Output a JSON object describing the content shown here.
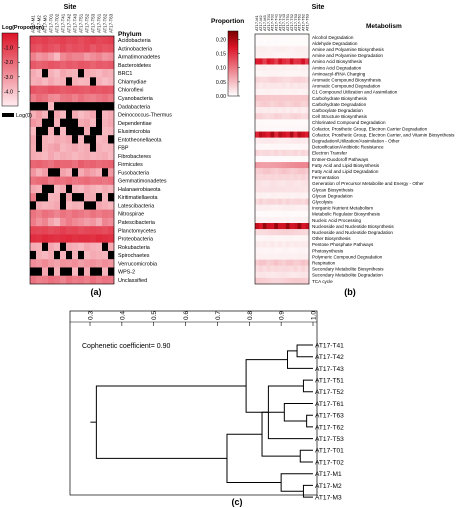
{
  "panel_a": {
    "label": "(a)",
    "site_title": "Site",
    "row_title": "Phylum",
    "legend_title": "Log(Proportion)",
    "legend_ticks": [
      "-1.0",
      "-2.0",
      "-3.0",
      "-4.0"
    ],
    "zero_label": "Log(0)",
    "sites": [
      "AT17-M1",
      "AT17-M2",
      "AT17-M3",
      "AT17-T01",
      "AT17-T02",
      "AT17-T41",
      "AT17-T42",
      "AT17-T43",
      "AT17-T51",
      "AT17-T52",
      "AT17-T53",
      "AT17-T61",
      "AT17-T62",
      "AT17-T63"
    ]
  },
  "panel_b": {
    "label": "(b)",
    "site_title": "Site",
    "row_title": "Metabolism",
    "legend_title": "Proportion",
    "legend_ticks": [
      "0.20",
      "0.15",
      "0.10",
      "0.05",
      "0.00"
    ],
    "sites": [
      "AT17-M1",
      "AT17-M2",
      "AT17-M3",
      "AT17-T01",
      "AT17-T02",
      "AT17-T41",
      "AT17-T42",
      "AT17-T43",
      "AT17-T51",
      "AT17-T52",
      "AT17-T53",
      "AT17-T61",
      "AT17-T62",
      "AT17-T63"
    ]
  },
  "panel_c": {
    "label": "(c)",
    "annotation": "Cophenetic coefficient= 0.90",
    "axis_ticks": [
      "0.3",
      "0.4",
      "0.5",
      "0.6",
      "0.7",
      "0.8",
      "0.9",
      "1.0"
    ],
    "leaves": [
      "AT17-T41",
      "AT17-T42",
      "AT17-T43",
      "AT17-T51",
      "AT17-T52",
      "AT17-T61",
      "AT17-T63",
      "AT17-T62",
      "AT17-T53",
      "AT17-T01",
      "AT17-T02",
      "AT17-M1",
      "AT17-M2",
      "AT17-M3"
    ]
  },
  "chart_data": [
    {
      "type": "heatmap",
      "panel": "a",
      "x": [
        "AT17-M1",
        "AT17-M2",
        "AT17-M3",
        "AT17-T01",
        "AT17-T02",
        "AT17-T41",
        "AT17-T42",
        "AT17-T43",
        "AT17-T51",
        "AT17-T52",
        "AT17-T53",
        "AT17-T61",
        "AT17-T62",
        "AT17-T63"
      ],
      "y": [
        "Acidobacteria",
        "Actinobacteria",
        "Armatimonadetes",
        "Bacteroidetes",
        "BRC1",
        "Chlamydiae",
        "Chloroflexi",
        "Cyanobacteria",
        "Dadabacteria",
        "Deinococcus-Thermus",
        "Dependentiae",
        "Elusimicrobia",
        "Entotheonellaeota",
        "FBP",
        "Fibrobacteres",
        "Firmicutes",
        "Fusobacteria",
        "Gemmatimonadetes",
        "Halanaerobiaeota",
        "Kiritimatiellaeota",
        "Latescibacteria",
        "Nitrospirae",
        "Patescibacteria",
        "Planctomycetes",
        "Proteobacteria",
        "Rokubacteria",
        "Spirochaetes",
        "Verrucomicrobia",
        "WPS-2",
        "Unclassified"
      ],
      "colorbar": {
        "label": "Log(Proportion)",
        "range": [
          -5,
          0
        ],
        "ticks": [
          -1.0,
          -2.0,
          -3.0,
          -4.0
        ],
        "zero_color": "#000000"
      },
      "values": [
        [
          -1.0,
          -1.1,
          -1.0,
          -1.2,
          -1.1,
          -1.0,
          -1.2,
          -1.1,
          -1.3,
          -1.1,
          -1.0,
          -1.2,
          -1.1,
          -1.0
        ],
        [
          -1.3,
          -1.5,
          -1.2,
          -1.4,
          -1.6,
          -1.2,
          -1.5,
          -1.3,
          -1.4,
          -1.2,
          -1.6,
          -1.3,
          -1.5,
          -1.4
        ],
        [
          -2.5,
          -3.0,
          -2.8,
          -3.2,
          -3.8,
          -2.7,
          -2.4,
          -2.6,
          -2.6,
          -3.1,
          -2.8,
          -2.6,
          -3.0,
          -2.8
        ],
        [
          -1.6,
          -1.8,
          -1.7,
          -1.5,
          -1.6,
          -1.8,
          -1.6,
          -1.7,
          -1.5,
          -1.6,
          -1.8,
          -1.6,
          -1.7,
          -1.6
        ],
        [
          -3.5,
          -3.8,
          null,
          -3.6,
          -3.9,
          -3.4,
          -3.6,
          -3.7,
          null,
          -3.5,
          -3.6,
          -3.8,
          -3.5,
          -3.6
        ],
        [
          -3.6,
          -3.5,
          -3.8,
          -3.4,
          -3.7,
          -3.6,
          null,
          -3.6,
          -3.8,
          -3.7,
          null,
          -3.6,
          -3.9,
          -3.7
        ],
        [
          -1.5,
          -1.7,
          -1.6,
          -1.4,
          -1.5,
          -1.7,
          -1.6,
          -1.5,
          -1.6,
          -1.7,
          -1.5,
          -1.6,
          -1.5,
          -1.6
        ],
        [
          -2.4,
          -2.0,
          -2.2,
          -2.7,
          -2.8,
          -2.3,
          -2.2,
          -2.5,
          -2.1,
          -2.4,
          -2.5,
          -2.3,
          -2.1,
          -2.4
        ],
        [
          null,
          null,
          null,
          -3.8,
          null,
          null,
          null,
          null,
          null,
          null,
          null,
          null,
          null,
          null
        ],
        [
          -3.6,
          -3.2,
          -3.7,
          null,
          -3.4,
          -3.8,
          null,
          -3.5,
          -3.9,
          -3.6,
          -3.4,
          null,
          -3.7,
          -3.5
        ],
        [
          -3.0,
          -3.3,
          null,
          null,
          -3.6,
          null,
          null,
          null,
          -3.5,
          -3.3,
          -3.8,
          null,
          -3.6,
          -3.4
        ],
        [
          -3.8,
          null,
          null,
          -3.6,
          null,
          -3.8,
          null,
          null,
          null,
          -3.5,
          null,
          null,
          -3.8,
          -3.7
        ],
        [
          -3.4,
          null,
          -3.6,
          -3.8,
          -3.5,
          -3.6,
          -3.4,
          null,
          -3.7,
          null,
          null,
          -3.8,
          -3.6,
          null
        ],
        [
          -3.5,
          null,
          -3.6,
          -3.4,
          -3.2,
          -3.8,
          -3.6,
          -3.4,
          -3.7,
          -3.5,
          null,
          -3.6,
          -3.8,
          -3.7
        ],
        [
          -3.5,
          -3.6,
          -3.8,
          -3.4,
          -3.7,
          -3.5,
          -3.6,
          -3.8,
          -3.6,
          -3.5,
          -3.7,
          -3.6,
          -3.5,
          -3.8
        ],
        [
          -1.9,
          -1.8,
          -2.0,
          -2.2,
          -1.8,
          -1.9,
          -1.9,
          -2.1,
          -1.7,
          -1.9,
          -1.8,
          -2.0,
          -1.9,
          -1.8
        ],
        [
          -3.0,
          -3.6,
          -3.2,
          null,
          null,
          -3.3,
          -3.6,
          null,
          -3.5,
          -3.0,
          -3.3,
          -3.6,
          null,
          -3.1
        ],
        [
          -2.2,
          -2.0,
          -1.9,
          -2.4,
          -2.1,
          -2.2,
          -2.0,
          -2.3,
          -2.1,
          -2.0,
          -2.2,
          -2.1,
          -2.3,
          -2.1
        ],
        [
          -3.4,
          -3.6,
          null,
          null,
          -3.8,
          -3.5,
          null,
          -3.6,
          -3.8,
          -3.4,
          -3.6,
          -3.8,
          -3.5,
          -3.7
        ],
        [
          -2.4,
          null,
          null,
          -3.7,
          -3.6,
          null,
          -3.3,
          null,
          null,
          -3.5,
          -3.5,
          null,
          -3.7,
          null
        ],
        [
          null,
          -3.5,
          -3.7,
          -3.6,
          -3.4,
          null,
          -3.8,
          -3.6,
          -3.7,
          null,
          null,
          -3.4,
          -3.6,
          -3.8
        ],
        [
          -2.2,
          -2.5,
          -2.1,
          -2.3,
          -2.6,
          -2.2,
          -2.4,
          -2.1,
          -2.3,
          -2.5,
          -2.2,
          -2.4,
          -2.2,
          -2.3
        ],
        [
          -2.4,
          -2.9,
          -2.6,
          -3.3,
          -3.7,
          -2.8,
          -2.4,
          -2.7,
          -2.9,
          -3.2,
          -3.0,
          -3.5,
          -2.6,
          -2.8
        ],
        [
          -1.1,
          -1.2,
          -1.1,
          -1.3,
          -1.2,
          -1.0,
          -1.2,
          -1.1,
          -1.3,
          -1.2,
          -1.1,
          -1.2,
          -1.3,
          -1.1
        ],
        [
          -0.6,
          -0.7,
          -0.5,
          -0.6,
          -0.7,
          -0.6,
          -0.5,
          -0.7,
          -0.6,
          -0.6,
          -0.7,
          -0.5,
          -0.6,
          -0.7
        ],
        [
          -3.5,
          -3.6,
          null,
          -3.4,
          -3.7,
          null,
          -3.5,
          -3.6,
          -3.8,
          -3.4,
          -3.6,
          -3.7,
          null,
          -3.5
        ],
        [
          null,
          -3.6,
          -3.8,
          -3.5,
          null,
          -3.7,
          null,
          -3.6,
          null,
          -3.8,
          -3.5,
          -3.6,
          -3.7,
          null
        ],
        [
          -2.8,
          -3.0,
          -2.7,
          -3.1,
          -3.3,
          -2.9,
          -3.0,
          -2.8,
          -3.2,
          -3.0,
          -2.9,
          -3.1,
          -2.8,
          -3.0
        ],
        [
          null,
          null,
          -3.4,
          null,
          -3.6,
          null,
          null,
          -3.8,
          null,
          -3.5,
          null,
          null,
          -3.7,
          null
        ],
        [
          -2.2,
          -2.5,
          -2.4,
          -2.1,
          -2.3,
          -2.6,
          -2.2,
          -2.4,
          -2.3,
          -2.5,
          -2.1,
          -2.4,
          -2.2,
          -2.3
        ]
      ]
    },
    {
      "type": "heatmap",
      "panel": "b",
      "x": [
        "AT17-M1",
        "AT17-M2",
        "AT17-M3",
        "AT17-T01",
        "AT17-T02",
        "AT17-T41",
        "AT17-T42",
        "AT17-T43",
        "AT17-T51",
        "AT17-T52",
        "AT17-T53",
        "AT17-T61",
        "AT17-T62",
        "AT17-T63"
      ],
      "y": [
        "Alcohol Degradation",
        "Aldehyde Degradation",
        "Amine and Polyamine Biosynthesis",
        "Amine and Polyamine Degradation",
        "Amino Acid Biosynthesis",
        "Amino Acid Degradation",
        "Aminoacyl-tRNA Charging",
        "Aromatic Compound Biosynthesis",
        "Aromatic Compound Degradation",
        "C1 Compound Utilization and Assimilation",
        "Carbohydrate Biosynthesis",
        "Carbohydrate Degradation",
        "Carboxylate Degradation",
        "Cell Structure Biosynthesis",
        "Chlorinated Compound Degradation",
        "Cofactor, Prosthetic Group, Electron Carrier Degradation",
        "Cofactor, Prosthetic Group, Electron Carrier, and Vitamin Biosynthesis",
        "Degradation/Utilization/Assimilation - Other",
        "Detoxification/Antibiotic Resistance",
        "Electron Transfer",
        "Entner-Duodoroff Pathways",
        "Fatty Acid and Lipid Biosynthesis",
        "Fatty Acid and Lipid Degradation",
        "Fermentation",
        "Generation of Precursor Metabolite and Energy - Other",
        "Glycan Biosynthesis",
        "Glycan Degradation",
        "Glycolysis",
        "Inorganic Nutrient Metabolism",
        "Metabolic Regulator Biosynthesis",
        "Nucleic Acid Processing",
        "Nucleoside and Nucleotide Biosynthesis",
        "Nucleoside and Nucleotide Degradation",
        "Other Biosynthesis",
        "Pentose Phosphate Pathways",
        "Photosynthesis",
        "Polymeric Compound Degradation",
        "Respiration",
        "Secondary Metabolite Biosynthesis",
        "Secondary Metabolite Degradation",
        "TCA cycle"
      ],
      "colorbar": {
        "label": "Proportion",
        "range": [
          0,
          0.23
        ],
        "ticks": [
          0.2,
          0.15,
          0.1,
          0.05,
          0.0
        ]
      },
      "values_by_row": [
        0.004,
        0.003,
        0.012,
        0.01,
        0.16,
        0.012,
        0.008,
        0.03,
        0.018,
        0.01,
        0.045,
        0.036,
        0.015,
        0.03,
        0.004,
        0.006,
        0.18,
        0.015,
        0.006,
        0.028,
        0.004,
        0.08,
        0.04,
        0.03,
        0.02,
        0.02,
        0.01,
        0.03,
        0.012,
        0.004,
        0.01,
        0.19,
        0.03,
        0.008,
        0.015,
        0.008,
        0.01,
        0.04,
        0.028,
        0.018,
        0.035
      ]
    },
    {
      "type": "dendrogram",
      "panel": "c",
      "leaves": [
        "AT17-T41",
        "AT17-T42",
        "AT17-T43",
        "AT17-T51",
        "AT17-T52",
        "AT17-T61",
        "AT17-T63",
        "AT17-T62",
        "AT17-T53",
        "AT17-T01",
        "AT17-T02",
        "AT17-M1",
        "AT17-M2",
        "AT17-M3"
      ],
      "axis": {
        "range": [
          0.3,
          1.0
        ],
        "ticks": [
          0.3,
          0.4,
          0.5,
          0.6,
          0.7,
          0.8,
          0.9,
          1.0
        ],
        "reversed": false
      },
      "merges": [
        {
          "a": 6,
          "b": 7,
          "height": 0.98
        },
        {
          "a": 0,
          "b": 1,
          "height": 0.95
        },
        {
          "a": 3,
          "b": 4,
          "height": 0.97
        },
        {
          "a": 9,
          "b": 10,
          "height": 0.96
        },
        {
          "a": 12,
          "b": 13,
          "height": 0.97
        },
        {
          "a": 5,
          "b": 14,
          "height": 0.91
        },
        {
          "a": 15,
          "b": 2,
          "height": 0.92
        },
        {
          "a": 16,
          "b": 8,
          "height": 0.86
        },
        {
          "a": 11,
          "b": 18,
          "height": 0.9
        },
        {
          "a": 17,
          "b": 19,
          "height": 0.84
        },
        {
          "a": 20,
          "b": 21,
          "height": 0.79
        },
        {
          "a": 22,
          "b": 23,
          "height": 0.73
        },
        {
          "a": 24,
          "b": 25,
          "height": 0.32
        }
      ],
      "annotation": "Cophenetic coefficient= 0.90"
    }
  ]
}
